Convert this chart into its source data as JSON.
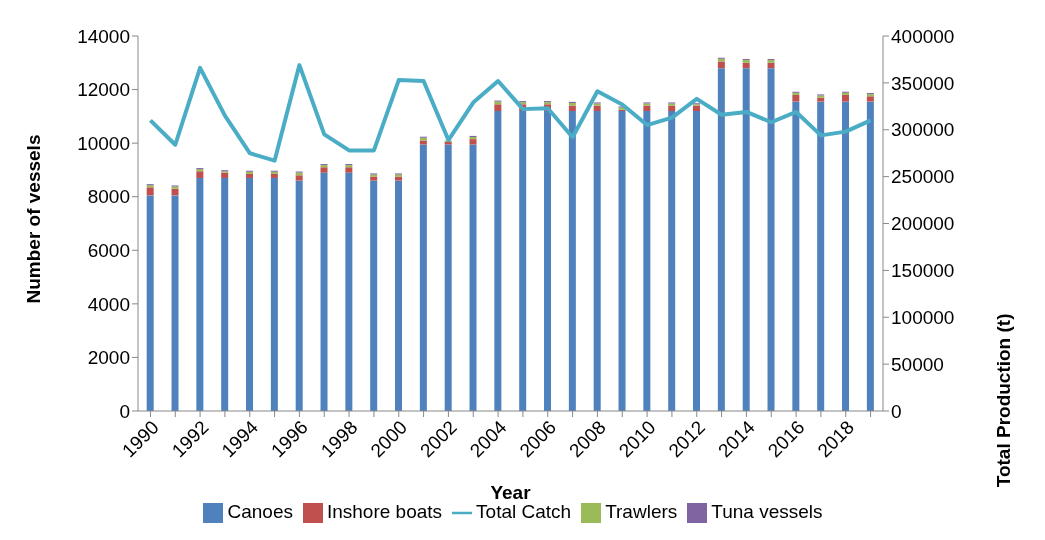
{
  "chart_data": {
    "type": "bar",
    "stacked": true,
    "xlabel": "Year",
    "ylabel": "Number of vessels",
    "y2label": "Total Production (t)",
    "categories": [
      "1990",
      null,
      "1992",
      null,
      "1994",
      null,
      "1996",
      null,
      "1998",
      null,
      "2000",
      null,
      "2002",
      null,
      "2004",
      null,
      "2006",
      null,
      "2008",
      null,
      "2010",
      null,
      "2012",
      null,
      "2014",
      null,
      "2016",
      null,
      "2018",
      null
    ],
    "series": [
      {
        "name": "Canoes",
        "color": "#4f81bd",
        "values": [
          8050,
          8050,
          8700,
          8700,
          8700,
          8700,
          8600,
          8900,
          8900,
          8600,
          8600,
          9950,
          9950,
          9950,
          11200,
          11200,
          11200,
          11200,
          11200,
          11200,
          11200,
          11200,
          11200,
          12800,
          12800,
          12800,
          11550,
          11550,
          11550,
          11550
        ]
      },
      {
        "name": "Inshore boats",
        "color": "#c0504d",
        "values": [
          300,
          250,
          250,
          200,
          150,
          150,
          200,
          200,
          200,
          150,
          150,
          150,
          100,
          200,
          250,
          250,
          250,
          200,
          200,
          50,
          200,
          200,
          200,
          250,
          200,
          200,
          250,
          150,
          250,
          200
        ]
      },
      {
        "name": "Trawlers",
        "color": "#9bbb59",
        "values": [
          80,
          80,
          80,
          50,
          80,
          80,
          100,
          80,
          80,
          80,
          80,
          100,
          50,
          80,
          100,
          80,
          80,
          100,
          80,
          80,
          80,
          80,
          50,
          100,
          100,
          100,
          80,
          80,
          80,
          80
        ]
      },
      {
        "name": "Tuna vessels",
        "color": "#8064a2",
        "values": [
          40,
          40,
          40,
          40,
          40,
          40,
          40,
          40,
          40,
          40,
          40,
          40,
          null,
          40,
          40,
          40,
          40,
          40,
          40,
          40,
          40,
          40,
          40,
          40,
          40,
          40,
          40,
          40,
          40,
          40
        ]
      },
      {
        "name": "Total Catch",
        "type": "line",
        "axis": "y2",
        "color": "#4bacc6",
        "values": [
          310000,
          284000,
          366000,
          315000,
          275000,
          267000,
          369000,
          295000,
          278000,
          278000,
          353000,
          352000,
          289000,
          329000,
          352000,
          322000,
          323000,
          292000,
          341000,
          327000,
          305000,
          313000,
          333000,
          316000,
          319000,
          308000,
          319000,
          294000,
          298000,
          310000
        ]
      }
    ],
    "ylim": [
      0,
      14000
    ],
    "yticks": [
      0,
      2000,
      4000,
      6000,
      8000,
      10000,
      12000,
      14000
    ],
    "y2lim": [
      0,
      400000
    ],
    "y2ticks": [
      0,
      50000,
      100000,
      150000,
      200000,
      250000,
      300000,
      350000,
      400000
    ],
    "grid": false,
    "legend": "bottom",
    "marker": "none"
  }
}
